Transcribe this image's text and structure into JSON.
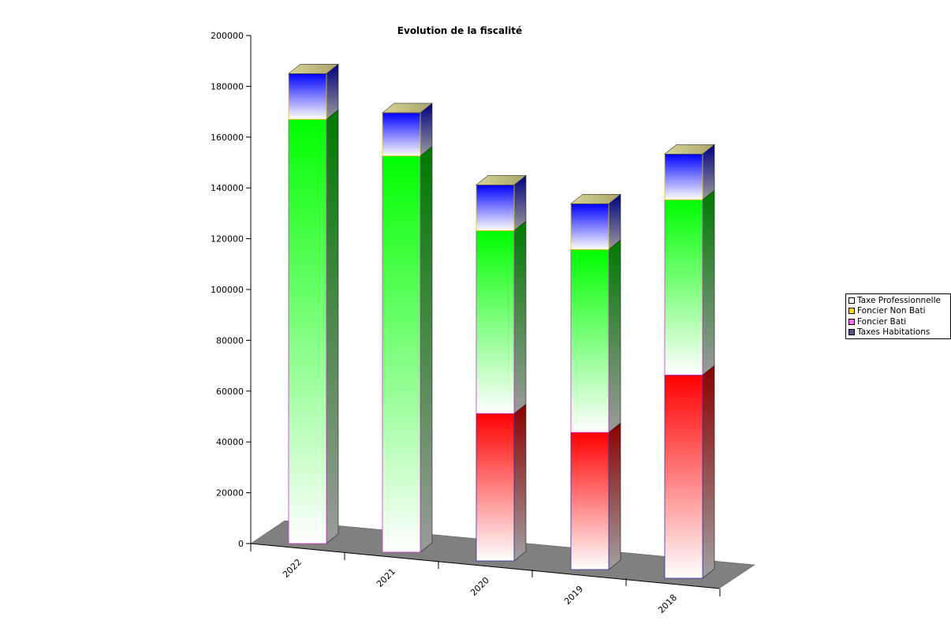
{
  "chart_data": {
    "type": "bar",
    "stacked": true,
    "view": "3d",
    "title": "Evolution de la fiscalité",
    "categories": [
      "2022",
      "2021",
      "2020",
      "2019",
      "2018"
    ],
    "series": [
      {
        "name": "Taxes Habitations",
        "values": [
          0,
          0,
          0,
          0,
          0
        ],
        "color": "#3b2a6b"
      },
      {
        "name": "Foncier Bati",
        "values": [
          0,
          0,
          58000,
          54000,
          80000
        ],
        "color": "#ff0000"
      },
      {
        "name": "Foncier Non Bati",
        "values": [
          167000,
          156000,
          72000,
          72000,
          69000
        ],
        "color": "#00ff00"
      },
      {
        "name": "Taxe Professionnelle",
        "values": [
          18000,
          17000,
          18000,
          18000,
          18000
        ],
        "color": "#0000ff"
      }
    ],
    "yticks": [
      "0",
      "20000",
      "40000",
      "60000",
      "80000",
      "100000",
      "120000",
      "140000",
      "160000",
      "180000",
      "200000"
    ],
    "ylim": [
      0,
      200000
    ],
    "xlabel": "",
    "ylabel": "",
    "legend_position": "right",
    "floor_color": "#808080"
  },
  "legend": {
    "items": [
      {
        "label": "Taxe Professionnelle",
        "color": "#ffffff"
      },
      {
        "label": "Foncier Non Bati",
        "color": "#ffd700"
      },
      {
        "label": "Foncier Bati",
        "color": "#ff66ff"
      },
      {
        "label": "Taxes Habitations",
        "color": "#5a4f8a"
      }
    ]
  }
}
